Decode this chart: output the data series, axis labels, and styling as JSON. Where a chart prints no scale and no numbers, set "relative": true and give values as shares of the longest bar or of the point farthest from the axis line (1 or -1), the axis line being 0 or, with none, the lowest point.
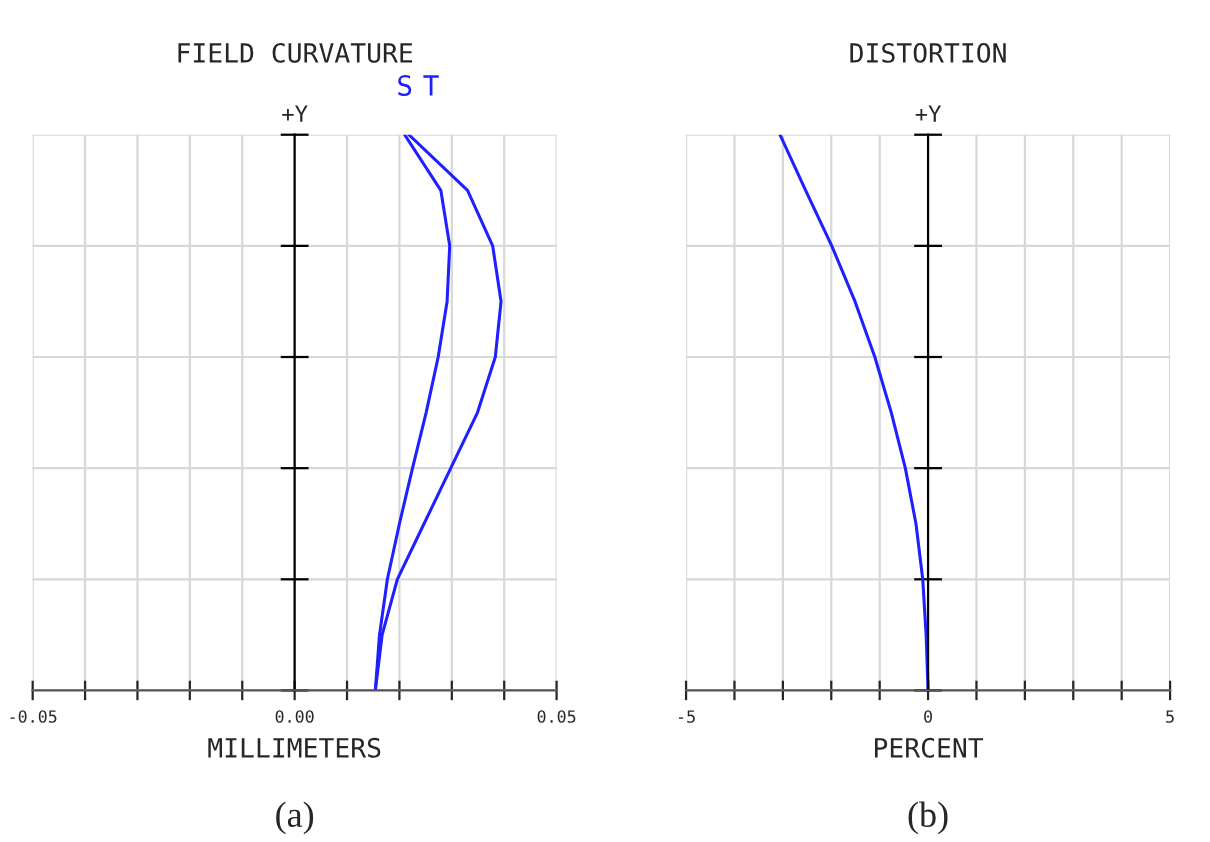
{
  "chart_data": [
    {
      "type": "line",
      "title": "FIELD CURVATURE",
      "xlabel": "MILLIMETERS",
      "ylabel": "+Y",
      "relative": true,
      "grid": true,
      "xlim": [
        -0.05,
        0.05
      ],
      "xticks": [
        {
          "value": -0.05,
          "label": "-0.05"
        },
        {
          "value": -0.04,
          "label": null
        },
        {
          "value": -0.03,
          "label": null
        },
        {
          "value": -0.02,
          "label": null
        },
        {
          "value": -0.01,
          "label": null
        },
        {
          "value": 0,
          "label": "0.00"
        },
        {
          "value": 0.01,
          "label": null
        },
        {
          "value": 0.02,
          "label": null
        },
        {
          "value": 0.03,
          "label": null
        },
        {
          "value": 0.04,
          "label": null
        },
        {
          "value": 0.05,
          "label": "0.05"
        }
      ],
      "annotations": [
        "(a)"
      ],
      "series": [
        {
          "name": "S",
          "color": "#1f1fff",
          "x": [
            0.0154,
            0.0162,
            0.0177,
            0.02,
            0.0225,
            0.0251,
            0.0274,
            0.0291,
            0.0296,
            0.0279,
            0.021
          ],
          "values": [
            0,
            0.1,
            0.2,
            0.3,
            0.4,
            0.5,
            0.6,
            0.7,
            0.8,
            0.9,
            1
          ]
        },
        {
          "name": "T",
          "color": "#1f1fff",
          "x": [
            0.0154,
            0.0167,
            0.0196,
            0.0247,
            0.0298,
            0.0349,
            0.0383,
            0.0394,
            0.0378,
            0.033,
            0.0218
          ],
          "values": [
            0,
            0.1,
            0.2,
            0.3,
            0.4,
            0.5,
            0.6,
            0.7,
            0.8,
            0.9,
            1
          ]
        }
      ]
    },
    {
      "type": "line",
      "title": "DISTORTION",
      "xlabel": "PERCENT",
      "ylabel": "+Y",
      "relative": true,
      "grid": true,
      "xlim": [
        -5,
        5
      ],
      "xticks": [
        -5,
        {
          "value": -4,
          "label": null
        },
        {
          "value": -3,
          "label": null
        },
        {
          "value": -2,
          "label": null
        },
        {
          "value": -1,
          "label": null
        },
        0,
        {
          "value": 1,
          "label": null
        },
        {
          "value": 2,
          "label": null
        },
        {
          "value": 3,
          "label": null
        },
        {
          "value": 4,
          "label": null
        },
        5
      ],
      "annotations": [
        "(b)"
      ],
      "series": [
        {
          "color": "#1f1fff",
          "x": [
            0,
            -0.04,
            -0.11,
            -0.25,
            -0.47,
            -0.76,
            -1.1,
            -1.51,
            -1.99,
            -2.53,
            -3.06
          ],
          "values": [
            0,
            0.1,
            0.2,
            0.3,
            0.4,
            0.5,
            0.6,
            0.7,
            0.8,
            0.9,
            1
          ]
        }
      ]
    }
  ]
}
